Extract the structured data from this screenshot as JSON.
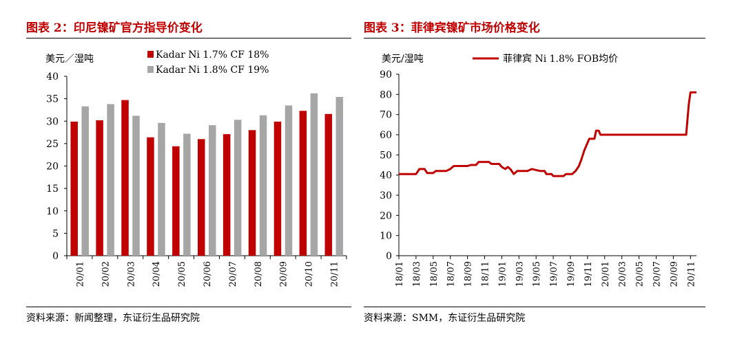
{
  "figure1": {
    "title": "图表 2：印尼镍矿官方指导价变化",
    "source": "资料来源：新闻整理，东证衍生品研究院"
  },
  "figure2": {
    "title": "图表 3：菲律宾镍矿市场价格变化",
    "source": "资料来源：SMM，东证衍生品研究院"
  },
  "chart_data": [
    {
      "type": "bar",
      "ylabel": "美元／湿吨",
      "ylim": [
        0,
        40
      ],
      "yticks": [
        0,
        5,
        10,
        15,
        20,
        25,
        30,
        35,
        40
      ],
      "categories": [
        "20/01",
        "20/02",
        "20/03",
        "20/04",
        "20/05",
        "20/06",
        "20/07",
        "20/08",
        "20/09",
        "20/10",
        "20/11"
      ],
      "legend_position": "top",
      "grid": false,
      "series": [
        {
          "name": "Kadar Ni 1.7% CF 18%",
          "color": "#c00000",
          "values": [
            29.9,
            30.2,
            34.7,
            26.4,
            24.4,
            26.0,
            27.1,
            28.0,
            29.9,
            32.3,
            31.6
          ]
        },
        {
          "name": "Kadar Ni 1.8% CF 19%",
          "color": "#a6a6a6",
          "values": [
            33.3,
            33.8,
            31.2,
            29.6,
            27.2,
            29.1,
            30.3,
            31.3,
            33.5,
            36.2,
            35.4
          ]
        }
      ]
    },
    {
      "type": "line",
      "ylabel": "美元/湿吨",
      "ylim": [
        0,
        90
      ],
      "yticks": [
        0,
        10,
        20,
        30,
        40,
        50,
        60,
        70,
        80,
        90
      ],
      "xticks": [
        "18/01",
        "18/03",
        "18/05",
        "18/07",
        "18/09",
        "18/11",
        "19/01",
        "19/03",
        "19/05",
        "19/07",
        "19/09",
        "19/11",
        "20/01",
        "20/03",
        "20/05",
        "20/07",
        "20/09",
        "20/11"
      ],
      "legend_position": "top",
      "grid": false,
      "series": [
        {
          "name": "菲律宾 Ni 1.8% FOB均价",
          "color": "#c00000",
          "x": [
            0,
            2,
            4,
            6,
            8,
            10,
            12,
            14,
            16,
            18,
            20,
            22,
            24,
            26,
            28,
            30,
            32,
            34
          ],
          "points": [
            [
              0,
              40.5
            ],
            [
              2,
              40.5
            ],
            [
              2.4,
              43
            ],
            [
              3,
              43
            ],
            [
              3.3,
              41
            ],
            [
              4,
              41
            ],
            [
              4.3,
              42
            ],
            [
              5.5,
              42
            ],
            [
              6,
              43
            ],
            [
              6.4,
              44.5
            ],
            [
              8,
              44.5
            ],
            [
              8.4,
              45
            ],
            [
              9,
              45
            ],
            [
              9.3,
              46.5
            ],
            [
              10.5,
              46.5
            ],
            [
              10.8,
              45.5
            ],
            [
              11.7,
              45.5
            ],
            [
              12,
              44
            ],
            [
              12.4,
              43
            ],
            [
              12.7,
              44
            ],
            [
              13,
              43
            ],
            [
              13.4,
              40.5
            ],
            [
              13.8,
              42
            ],
            [
              15,
              42
            ],
            [
              15.5,
              43
            ],
            [
              16.5,
              42
            ],
            [
              17,
              42
            ],
            [
              17.2,
              40.5
            ],
            [
              17.8,
              40.5
            ],
            [
              18,
              39.5
            ],
            [
              19.2,
              39.5
            ],
            [
              19.5,
              40.5
            ],
            [
              20.2,
              40.5
            ],
            [
              20.6,
              42
            ],
            [
              21,
              44.5
            ],
            [
              21.3,
              48
            ],
            [
              21.6,
              52
            ],
            [
              21.9,
              55
            ],
            [
              22.2,
              58
            ],
            [
              22.8,
              58
            ],
            [
              23,
              62
            ],
            [
              23.3,
              62
            ],
            [
              23.5,
              60
            ],
            [
              33.5,
              60
            ],
            [
              33.8,
              75
            ],
            [
              34,
              81
            ],
            [
              34.7,
              81
            ]
          ]
        }
      ]
    }
  ]
}
